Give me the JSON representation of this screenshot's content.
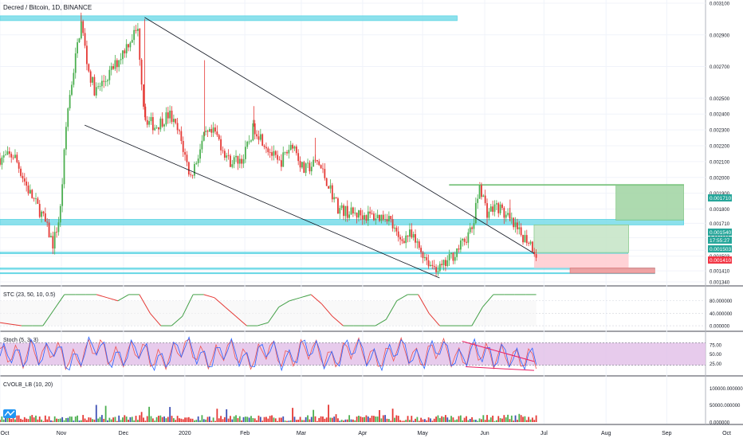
{
  "header": {
    "symbol_title": "Decred / Bitcoin, 1D, BINANCE"
  },
  "panes": {
    "stc_label": "STC (23, 50, 10, 0.5)",
    "stoch_label": "Stoch (5, 3, 3)",
    "cvol_label": "CVOLB_LB (10, 20)"
  },
  "colors": {
    "up": "#4caf50",
    "down": "#e53935",
    "zone_cyan": "#80deea",
    "zone_green": "#a5d6a7",
    "zone_red_light": "#ffcdd2",
    "zone_red": "#ef9a9a",
    "stoch_fill": "#e1bee7",
    "stoch_k": "#2962ff",
    "stoch_d": "#ef5350",
    "stc_up": "#43a047",
    "stc_down": "#e53935",
    "trend_red": "#e91e63"
  },
  "badges": {
    "b1": {
      "text": "0.001710",
      "color": "#26a69a"
    },
    "b2": {
      "text": "0.001540",
      "color": "#26a69a"
    },
    "b3": {
      "text": "17:55:27",
      "color": "#26a69a"
    },
    "b4": {
      "text": "0.001503",
      "color": "#26a69a"
    },
    "b5": {
      "text": "0.001410",
      "color": "#f23645"
    }
  },
  "chart_data": [
    {
      "type": "candlestick",
      "title": "Decred / Bitcoin, 1D, BINANCE",
      "x_ticks": [
        "Oct",
        "Nov",
        "Dec",
        "2020",
        "Feb",
        "Mar",
        "Apr",
        "May",
        "Jun",
        "Jul",
        "Aug",
        "Sep",
        "Oct"
      ],
      "x_tick_fracs": [
        0.0,
        0.087,
        0.175,
        0.262,
        0.347,
        0.427,
        0.514,
        0.599,
        0.687,
        0.771,
        0.859,
        0.945,
        1.03
      ],
      "y_ticks": [
        "0.003100",
        "0.002900",
        "0.002700",
        "0.002500",
        "0.002400",
        "0.002300",
        "0.002200",
        "0.002100",
        "0.002000",
        "0.001900",
        "0.001800",
        "0.001710",
        "0.001620",
        "0.001540",
        "0.001503",
        "0.001410",
        "0.001340"
      ],
      "ylim": [
        0.00132,
        0.00312
      ],
      "price_path": [
        [
          0.0,
          0.00212
        ],
        [
          0.02,
          0.00214
        ],
        [
          0.04,
          0.00192
        ],
        [
          0.06,
          0.00176
        ],
        [
          0.075,
          0.00158
        ],
        [
          0.085,
          0.00176
        ],
        [
          0.095,
          0.0024
        ],
        [
          0.105,
          0.0027
        ],
        [
          0.115,
          0.00298
        ],
        [
          0.125,
          0.00268
        ],
        [
          0.135,
          0.00254
        ],
        [
          0.15,
          0.00262
        ],
        [
          0.165,
          0.00272
        ],
        [
          0.18,
          0.00284
        ],
        [
          0.195,
          0.00294
        ],
        [
          0.205,
          0.00238
        ],
        [
          0.22,
          0.00232
        ],
        [
          0.24,
          0.0024
        ],
        [
          0.255,
          0.00226
        ],
        [
          0.27,
          0.002
        ],
        [
          0.29,
          0.00226
        ],
        [
          0.305,
          0.00228
        ],
        [
          0.325,
          0.0021
        ],
        [
          0.345,
          0.00212
        ],
        [
          0.36,
          0.00232
        ],
        [
          0.375,
          0.00222
        ],
        [
          0.395,
          0.00208
        ],
        [
          0.415,
          0.00222
        ],
        [
          0.43,
          0.00204
        ],
        [
          0.45,
          0.0021
        ],
        [
          0.465,
          0.00196
        ],
        [
          0.48,
          0.0018
        ],
        [
          0.5,
          0.00177
        ],
        [
          0.52,
          0.00176
        ],
        [
          0.535,
          0.00175
        ],
        [
          0.55,
          0.00176
        ],
        [
          0.565,
          0.0016
        ],
        [
          0.58,
          0.00164
        ],
        [
          0.595,
          0.00155
        ],
        [
          0.61,
          0.00145
        ],
        [
          0.625,
          0.00142
        ],
        [
          0.64,
          0.0015
        ],
        [
          0.655,
          0.00158
        ],
        [
          0.67,
          0.00168
        ],
        [
          0.68,
          0.00196
        ],
        [
          0.69,
          0.00178
        ],
        [
          0.705,
          0.00182
        ],
        [
          0.72,
          0.00174
        ],
        [
          0.735,
          0.00165
        ],
        [
          0.75,
          0.0016
        ],
        [
          0.76,
          0.00152
        ]
      ]
    },
    {
      "type": "line",
      "title": "STC (23, 50, 10, 0.5)",
      "y_ticks": [
        "80.000000",
        "40.000000",
        "0.000000"
      ],
      "ylim": [
        -5,
        110
      ],
      "values": [
        10,
        5,
        0,
        0,
        0,
        50,
        100,
        100,
        100,
        100,
        90,
        80,
        100,
        100,
        40,
        0,
        0,
        30,
        100,
        100,
        90,
        60,
        30,
        0,
        0,
        10,
        60,
        80,
        90,
        100,
        70,
        30,
        0,
        0,
        0,
        0,
        20,
        80,
        100,
        100,
        40,
        0,
        0,
        0,
        0,
        60,
        100,
        100,
        100,
        100,
        100
      ]
    },
    {
      "type": "line",
      "title": "Stoch (5, 3, 3)",
      "y_ticks": [
        "75.00",
        "50.00",
        "25.00"
      ],
      "ylim": [
        0,
        100
      ],
      "band": [
        20,
        80
      ],
      "series_k": [
        40,
        60,
        20,
        80,
        30,
        90,
        20,
        10,
        70,
        95,
        40,
        20,
        60,
        80,
        30,
        10,
        50,
        90,
        70,
        20,
        30,
        80,
        60,
        10,
        40,
        90,
        30,
        20,
        70,
        85,
        40,
        10,
        60,
        90,
        50,
        20,
        30,
        85,
        60,
        15,
        50,
        90,
        40,
        20,
        70,
        60,
        30,
        55,
        25,
        30,
        35
      ],
      "series_d": [
        45,
        55,
        30,
        70,
        40,
        80,
        30,
        20,
        60,
        90,
        50,
        30,
        55,
        75,
        35,
        20,
        45,
        85,
        70,
        30,
        35,
        75,
        60,
        20,
        40,
        85,
        40,
        25,
        65,
        80,
        45,
        20,
        55,
        85,
        55,
        25,
        35,
        80,
        60,
        25,
        50,
        85,
        45,
        25,
        65,
        60,
        35,
        50,
        30,
        30,
        32
      ]
    },
    {
      "type": "bar",
      "title": "CVOLB_LB (10, 20)",
      "y_ticks": [
        "100000.000000",
        "50000.000000",
        "0.000000"
      ],
      "ylim": [
        0,
        110000
      ]
    }
  ]
}
